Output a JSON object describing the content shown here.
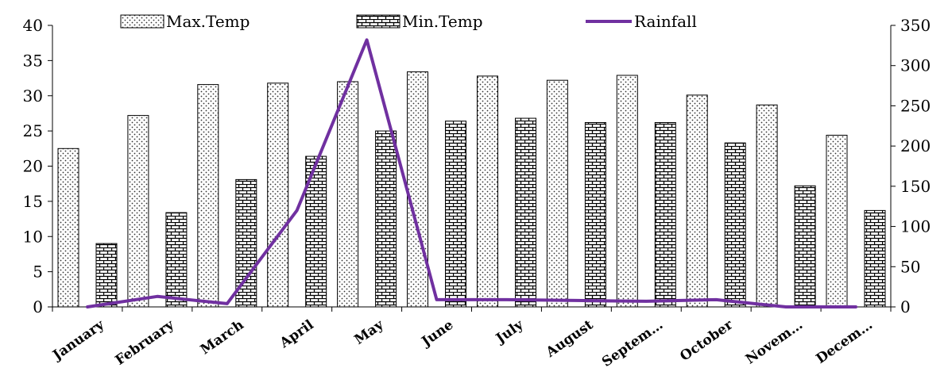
{
  "chart_data": {
    "type": "bar",
    "categories": [
      "January",
      "February",
      "March",
      "April",
      "May",
      "June",
      "July",
      "August",
      "Septem…",
      "October",
      "Novem…",
      "Decem…"
    ],
    "series": [
      {
        "name": "Max.Temp",
        "type": "bar",
        "axis": "left",
        "pattern": "dots",
        "values": [
          22.5,
          27.2,
          31.6,
          31.8,
          32.0,
          33.4,
          32.8,
          32.2,
          32.9,
          30.1,
          28.7,
          24.4
        ]
      },
      {
        "name": "Min.Temp",
        "type": "bar",
        "axis": "left",
        "pattern": "bricks",
        "values": [
          9.0,
          13.4,
          18.1,
          21.4,
          25.0,
          26.4,
          26.8,
          26.2,
          26.2,
          23.3,
          17.2,
          13.7
        ]
      },
      {
        "name": "Rainfall",
        "type": "line",
        "axis": "right",
        "color": "#7030a0",
        "values": [
          0,
          13,
          4,
          120,
          332,
          9,
          9,
          8,
          7,
          9,
          0,
          0
        ]
      }
    ],
    "y_left": {
      "min": 0,
      "max": 40,
      "ticks": [
        0,
        5,
        10,
        15,
        20,
        25,
        30,
        35,
        40
      ]
    },
    "y_right": {
      "min": 0,
      "max": 350,
      "ticks": [
        0,
        50,
        100,
        150,
        200,
        250,
        300,
        350
      ]
    },
    "legend_position": "top",
    "grid": false
  }
}
